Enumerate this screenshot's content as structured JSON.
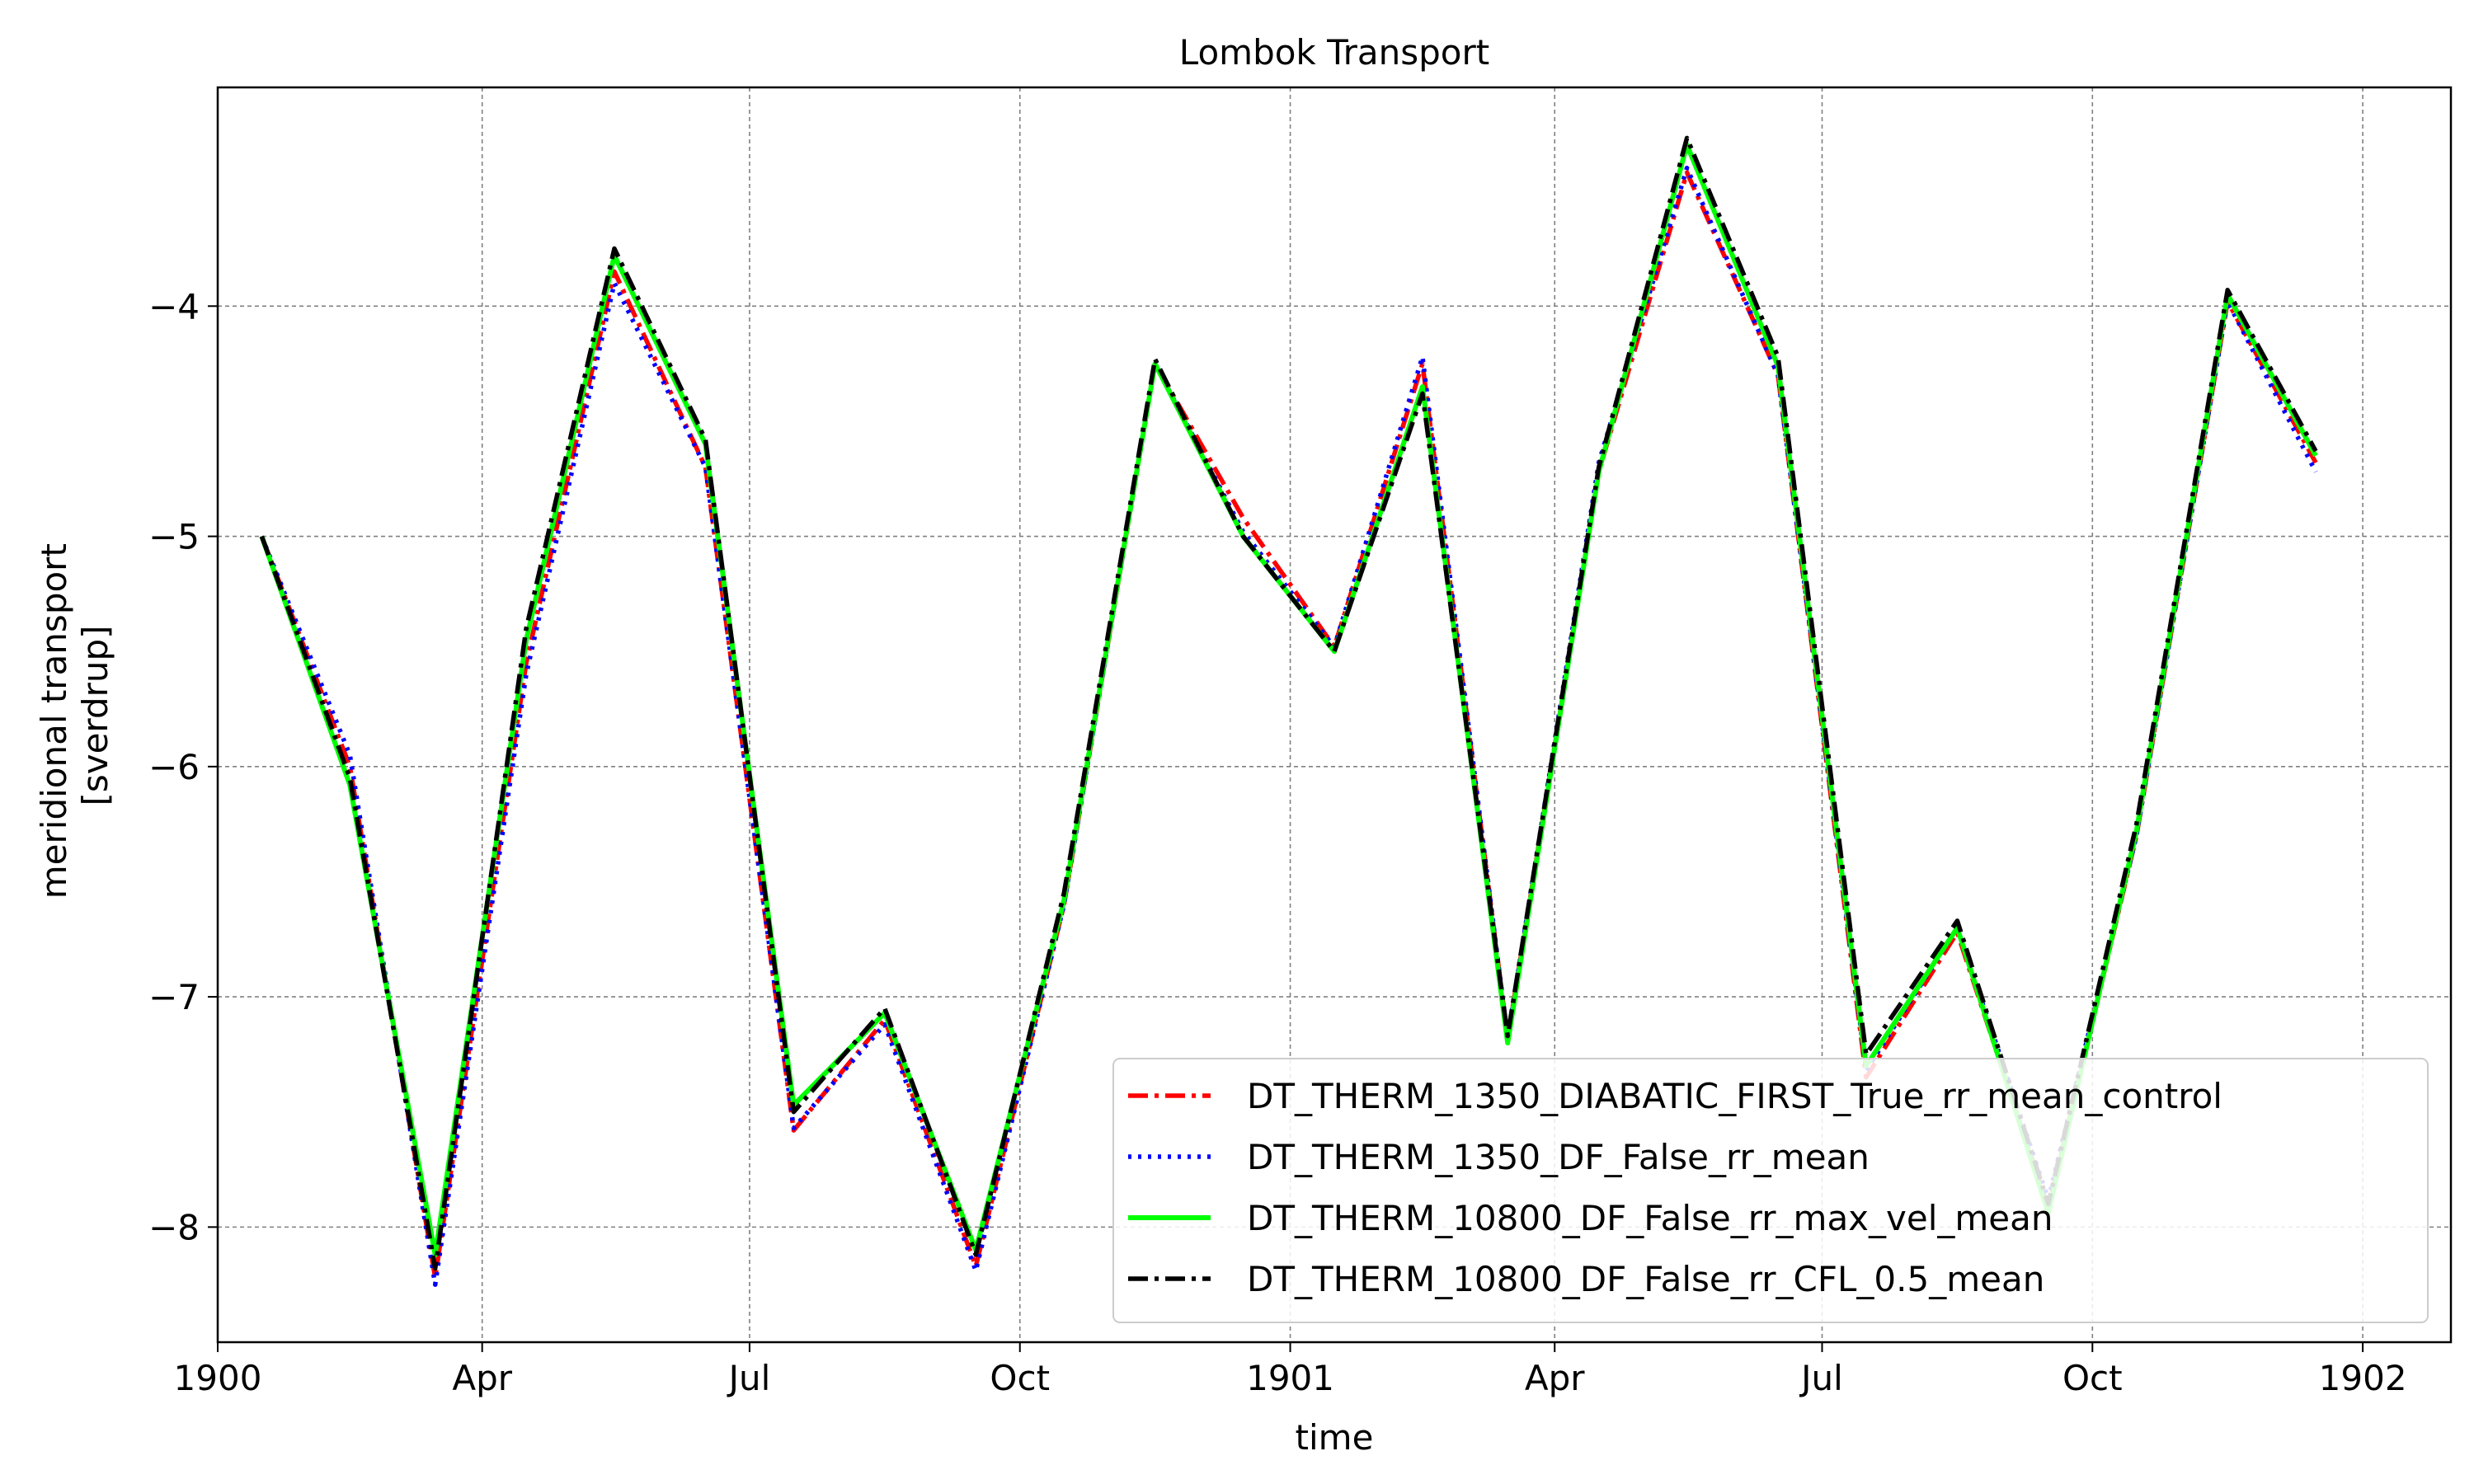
{
  "chart_data": {
    "type": "line",
    "title": "Lombok Transport",
    "xlabel": "time",
    "ylabel": [
      "meridional transport",
      "[sverdrup]"
    ],
    "x_tick_labels": [
      "1900",
      "Apr",
      "Jul",
      "Oct",
      "1901",
      "Apr",
      "Jul",
      "Oct",
      "1902"
    ],
    "x_ticks": [
      "1900-01-01",
      "1900-04-01",
      "1900-07-01",
      "1900-10-01",
      "1901-01-01",
      "1901-04-01",
      "1901-07-01",
      "1901-10-01",
      "1902-01-01"
    ],
    "xlim": [
      "1900-01-01",
      "1902-01-31"
    ],
    "y_tick_labels": [
      "−8",
      "−7",
      "−6",
      "−5",
      "−4"
    ],
    "y_ticks": [
      -8,
      -7,
      -6,
      -5,
      -4
    ],
    "ylim": [
      -8.5,
      -3.05
    ],
    "grid": true,
    "legend_position": "lower right",
    "x": [
      "1900-01-16",
      "1900-02-15",
      "1900-03-16",
      "1900-04-16",
      "1900-05-16",
      "1900-06-16",
      "1900-07-16",
      "1900-08-16",
      "1900-09-16",
      "1900-10-16",
      "1900-11-16",
      "1900-12-16",
      "1901-01-16",
      "1901-02-15",
      "1901-03-16",
      "1901-04-16",
      "1901-05-16",
      "1901-06-16",
      "1901-07-16",
      "1901-08-16",
      "1901-09-16",
      "1901-10-16",
      "1901-11-16",
      "1901-12-16"
    ],
    "series": [
      {
        "name": "DT_THERM_1350_DIABATIC_FIRST_True_rr_mean_control",
        "color": "#ff0000",
        "dash": "dashdot",
        "values": [
          -5.0,
          -6.0,
          -8.22,
          -5.55,
          -3.85,
          -4.7,
          -7.58,
          -7.1,
          -8.17,
          -6.6,
          -4.25,
          -4.92,
          -5.48,
          -4.25,
          -7.18,
          -4.72,
          -3.42,
          -4.3,
          -7.35,
          -6.72,
          -7.92,
          -6.3,
          -3.98,
          -4.68
        ]
      },
      {
        "name": "DT_THERM_1350_DF_False_rr_mean",
        "color": "#0000ff",
        "dash": "dotted",
        "values": [
          -5.0,
          -5.95,
          -8.25,
          -5.6,
          -3.9,
          -4.7,
          -7.57,
          -7.12,
          -8.19,
          -6.6,
          -4.25,
          -4.98,
          -5.48,
          -4.22,
          -7.18,
          -4.68,
          -3.4,
          -4.3,
          -7.32,
          -6.7,
          -7.88,
          -6.3,
          -3.98,
          -4.72
        ]
      },
      {
        "name": "DT_THERM_10800_DF_False_rr_max_vel_mean",
        "color": "#00ff00",
        "dash": "solid",
        "values": [
          -5.0,
          -6.08,
          -8.12,
          -5.45,
          -3.78,
          -4.6,
          -7.47,
          -7.07,
          -8.1,
          -6.58,
          -4.25,
          -5.0,
          -5.5,
          -4.35,
          -7.2,
          -4.72,
          -3.3,
          -4.26,
          -7.3,
          -6.7,
          -7.94,
          -6.28,
          -3.95,
          -4.65
        ]
      },
      {
        "name": "DT_THERM_10800_DF_False_rr_CFL_0.5_mean",
        "color": "#000000",
        "dash": "dashdot",
        "values": [
          -5.0,
          -6.05,
          -8.18,
          -5.4,
          -3.75,
          -4.58,
          -7.5,
          -7.05,
          -8.12,
          -6.55,
          -4.23,
          -5.0,
          -5.5,
          -4.38,
          -7.17,
          -4.7,
          -3.27,
          -4.22,
          -7.25,
          -6.67,
          -7.9,
          -6.25,
          -3.93,
          -4.63
        ]
      }
    ]
  }
}
